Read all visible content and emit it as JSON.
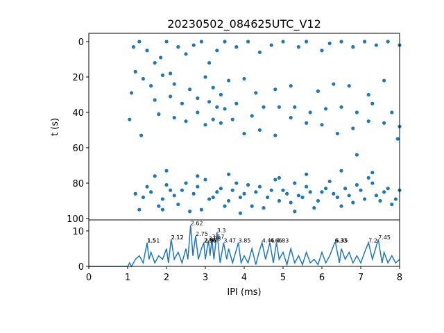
{
  "chart_data": [
    {
      "type": "scatter",
      "title": "20230502_084625UTC_V12",
      "ylabel": "t (s)",
      "color": "#1f77b4",
      "xlim": [
        0,
        8
      ],
      "ylim": [
        -4.7,
        100.8
      ],
      "y_inverted": true,
      "yticks": [
        0,
        20,
        40,
        60,
        80,
        100
      ],
      "x": [
        1.15,
        1.3,
        1.5,
        1.7,
        1.85,
        2.0,
        2.1,
        2.3,
        2.5,
        2.7,
        2.9,
        3.1,
        3.3,
        3.5,
        3.8,
        4.1,
        4.4,
        4.7,
        5.0,
        5.4,
        5.6,
        6.0,
        6.2,
        6.5,
        6.8,
        7.1,
        7.4,
        7.7,
        8.0,
        1.2,
        1.4,
        1.6,
        1.9,
        2.2,
        2.6,
        3.0,
        3.2,
        3.4,
        3.6,
        4.0,
        4.3,
        4.8,
        5.2,
        5.9,
        6.3,
        6.7,
        7.2,
        7.6,
        1.1,
        1.7,
        2.1,
        2.4,
        2.8,
        3.1,
        3.3,
        3.5,
        3.8,
        4.2,
        4.5,
        4.9,
        5.3,
        5.7,
        6.1,
        6.5,
        6.9,
        7.3,
        7.8,
        1.05,
        1.35,
        1.8,
        2.2,
        2.5,
        2.8,
        3.0,
        3.2,
        3.4,
        3.7,
        4.0,
        4.4,
        4.8,
        5.2,
        5.6,
        6.0,
        6.4,
        6.8,
        7.2,
        7.6,
        8.0,
        7.95,
        1.2,
        1.3,
        1.5,
        1.7,
        1.9,
        2.1,
        2.3,
        2.5,
        2.7,
        2.9,
        3.0,
        3.2,
        3.4,
        3.6,
        3.8,
        4.0,
        4.2,
        4.4,
        4.6,
        4.8,
        5.0,
        5.2,
        5.4,
        5.6,
        5.8,
        6.0,
        6.2,
        6.4,
        6.6,
        6.8,
        7.0,
        7.2,
        7.4,
        7.6,
        7.8,
        8.0,
        1.4,
        1.6,
        1.8,
        2.0,
        2.2,
        2.4,
        2.6,
        2.8,
        3.1,
        3.3,
        3.5,
        3.7,
        3.9,
        4.1,
        4.3,
        4.5,
        4.7,
        4.9,
        5.1,
        5.3,
        5.5,
        5.7,
        5.9,
        6.1,
        6.3,
        6.5,
        6.7,
        6.9,
        7.1,
        7.3,
        7.5,
        7.7,
        7.9,
        2.0,
        2.8,
        3.6,
        4.9,
        5.6,
        6.5,
        7.3,
        6.9,
        1.9,
        3.9,
        5.3
      ],
      "values": [
        3,
        0,
        5,
        12,
        9,
        0,
        18,
        3,
        7,
        2,
        0,
        12,
        5,
        0,
        3,
        0,
        6,
        2,
        0,
        3,
        0,
        5,
        1,
        0,
        3,
        0,
        2,
        0,
        2,
        17,
        21,
        25,
        19,
        24,
        27,
        20,
        26,
        30,
        22,
        21,
        29,
        27,
        25,
        28,
        24,
        25,
        30,
        22,
        29,
        33,
        31,
        35,
        32,
        34,
        37,
        38,
        35,
        42,
        37,
        37,
        37,
        40,
        38,
        37,
        40,
        35,
        40,
        44,
        53,
        41,
        43,
        45,
        40,
        47,
        44,
        46,
        44,
        52,
        50,
        53,
        43,
        46,
        47,
        52,
        49,
        45,
        46,
        48,
        55,
        86,
        95,
        82,
        76,
        89,
        84,
        92,
        80,
        86,
        95,
        78,
        88,
        83,
        90,
        80,
        86,
        93,
        82,
        88,
        78,
        84,
        91,
        87,
        82,
        94,
        85,
        79,
        88,
        83,
        91,
        84,
        77,
        87,
        85,
        92,
        84,
        88,
        85,
        93,
        81,
        87,
        84,
        96,
        82,
        89,
        85,
        93,
        84,
        88,
        81,
        85,
        94,
        84,
        90,
        86,
        80,
        88,
        85,
        90,
        83,
        86,
        93,
        87,
        81,
        89,
        80,
        90,
        83,
        89,
        73,
        76,
        75,
        77,
        75,
        73,
        74,
        64,
        95,
        97,
        96
      ]
    },
    {
      "type": "line",
      "xlabel": "IPI (ms)",
      "color": "#1f77b4",
      "xlim": [
        0,
        8
      ],
      "ylim": [
        0,
        13.1
      ],
      "xticks": [
        0,
        1,
        2,
        3,
        4,
        5,
        6,
        7,
        8
      ],
      "yticks": [
        0,
        10
      ],
      "x": [
        0,
        1.0,
        1.05,
        1.1,
        1.2,
        1.3,
        1.4,
        1.5,
        1.55,
        1.6,
        1.7,
        1.8,
        1.9,
        2.0,
        2.05,
        2.12,
        2.2,
        2.3,
        2.4,
        2.5,
        2.55,
        2.62,
        2.68,
        2.75,
        2.82,
        2.9,
        2.96,
        3.0,
        3.08,
        3.12,
        3.17,
        3.22,
        3.3,
        3.38,
        3.47,
        3.55,
        3.6,
        3.7,
        3.78,
        3.85,
        3.92,
        4.0,
        4.1,
        4.2,
        4.3,
        4.38,
        4.46,
        4.55,
        4.66,
        4.75,
        4.83,
        4.9,
        5.0,
        5.1,
        5.2,
        5.3,
        5.4,
        5.5,
        5.6,
        5.7,
        5.8,
        5.9,
        6.0,
        6.1,
        6.2,
        6.33,
        6.35,
        6.45,
        6.5,
        6.6,
        6.7,
        6.8,
        6.9,
        7.0,
        7.1,
        7.2,
        7.3,
        7.45,
        7.55,
        7.6,
        7.7,
        7.8,
        7.9,
        8.0
      ],
      "values": [
        0,
        0,
        1,
        0,
        2,
        3,
        1,
        6.7,
        2,
        4,
        1,
        3,
        2,
        5,
        1,
        7.6,
        2,
        4,
        1,
        5,
        2,
        11.6,
        3,
        8.6,
        2,
        5,
        6.7,
        2,
        7.3,
        3,
        7.8,
        2,
        9.6,
        1,
        6.7,
        2,
        5,
        1,
        4,
        6.7,
        1,
        3,
        1,
        5,
        0.5,
        4,
        6.7,
        2,
        6.7,
        1,
        6.7,
        2,
        4,
        0.5,
        5,
        1,
        3,
        0.5,
        4,
        1,
        2,
        0.5,
        4,
        1,
        3,
        6.7,
        6.7,
        1,
        5,
        2,
        4,
        1,
        3,
        1,
        4,
        6.7,
        2,
        7.6,
        1,
        4,
        1,
        3,
        1,
        2
      ],
      "annotations": [
        {
          "label": "1.5",
          "x": 1.5,
          "y": 6.7
        },
        {
          "label": "1.51",
          "x": 1.51,
          "y": 6.7
        },
        {
          "label": "2.12",
          "x": 2.12,
          "y": 7.6
        },
        {
          "label": "2.12",
          "x": 2.12,
          "y": 7.6
        },
        {
          "label": "2.62",
          "x": 2.62,
          "y": 11.6
        },
        {
          "label": "2.75",
          "x": 2.75,
          "y": 8.6
        },
        {
          "label": "2.96",
          "x": 2.96,
          "y": 6.7
        },
        {
          "label": "2.98",
          "x": 2.98,
          "y": 6.7
        },
        {
          "label": "3.08",
          "x": 3.08,
          "y": 7.3
        },
        {
          "label": "3.17",
          "x": 3.17,
          "y": 7.8
        },
        {
          "label": "3.3",
          "x": 3.3,
          "y": 9.6
        },
        {
          "label": "3.47",
          "x": 3.47,
          "y": 6.7
        },
        {
          "label": "3.85",
          "x": 3.85,
          "y": 6.7
        },
        {
          "label": "4.46",
          "x": 4.46,
          "y": 6.7
        },
        {
          "label": "4.66",
          "x": 4.66,
          "y": 6.7
        },
        {
          "label": "4.83",
          "x": 4.83,
          "y": 6.7
        },
        {
          "label": "6.33",
          "x": 6.33,
          "y": 6.7
        },
        {
          "label": "6.35",
          "x": 6.35,
          "y": 6.7
        },
        {
          "label": "7.2",
          "x": 7.2,
          "y": 6.7
        },
        {
          "label": "7.45",
          "x": 7.45,
          "y": 7.6
        }
      ]
    }
  ]
}
